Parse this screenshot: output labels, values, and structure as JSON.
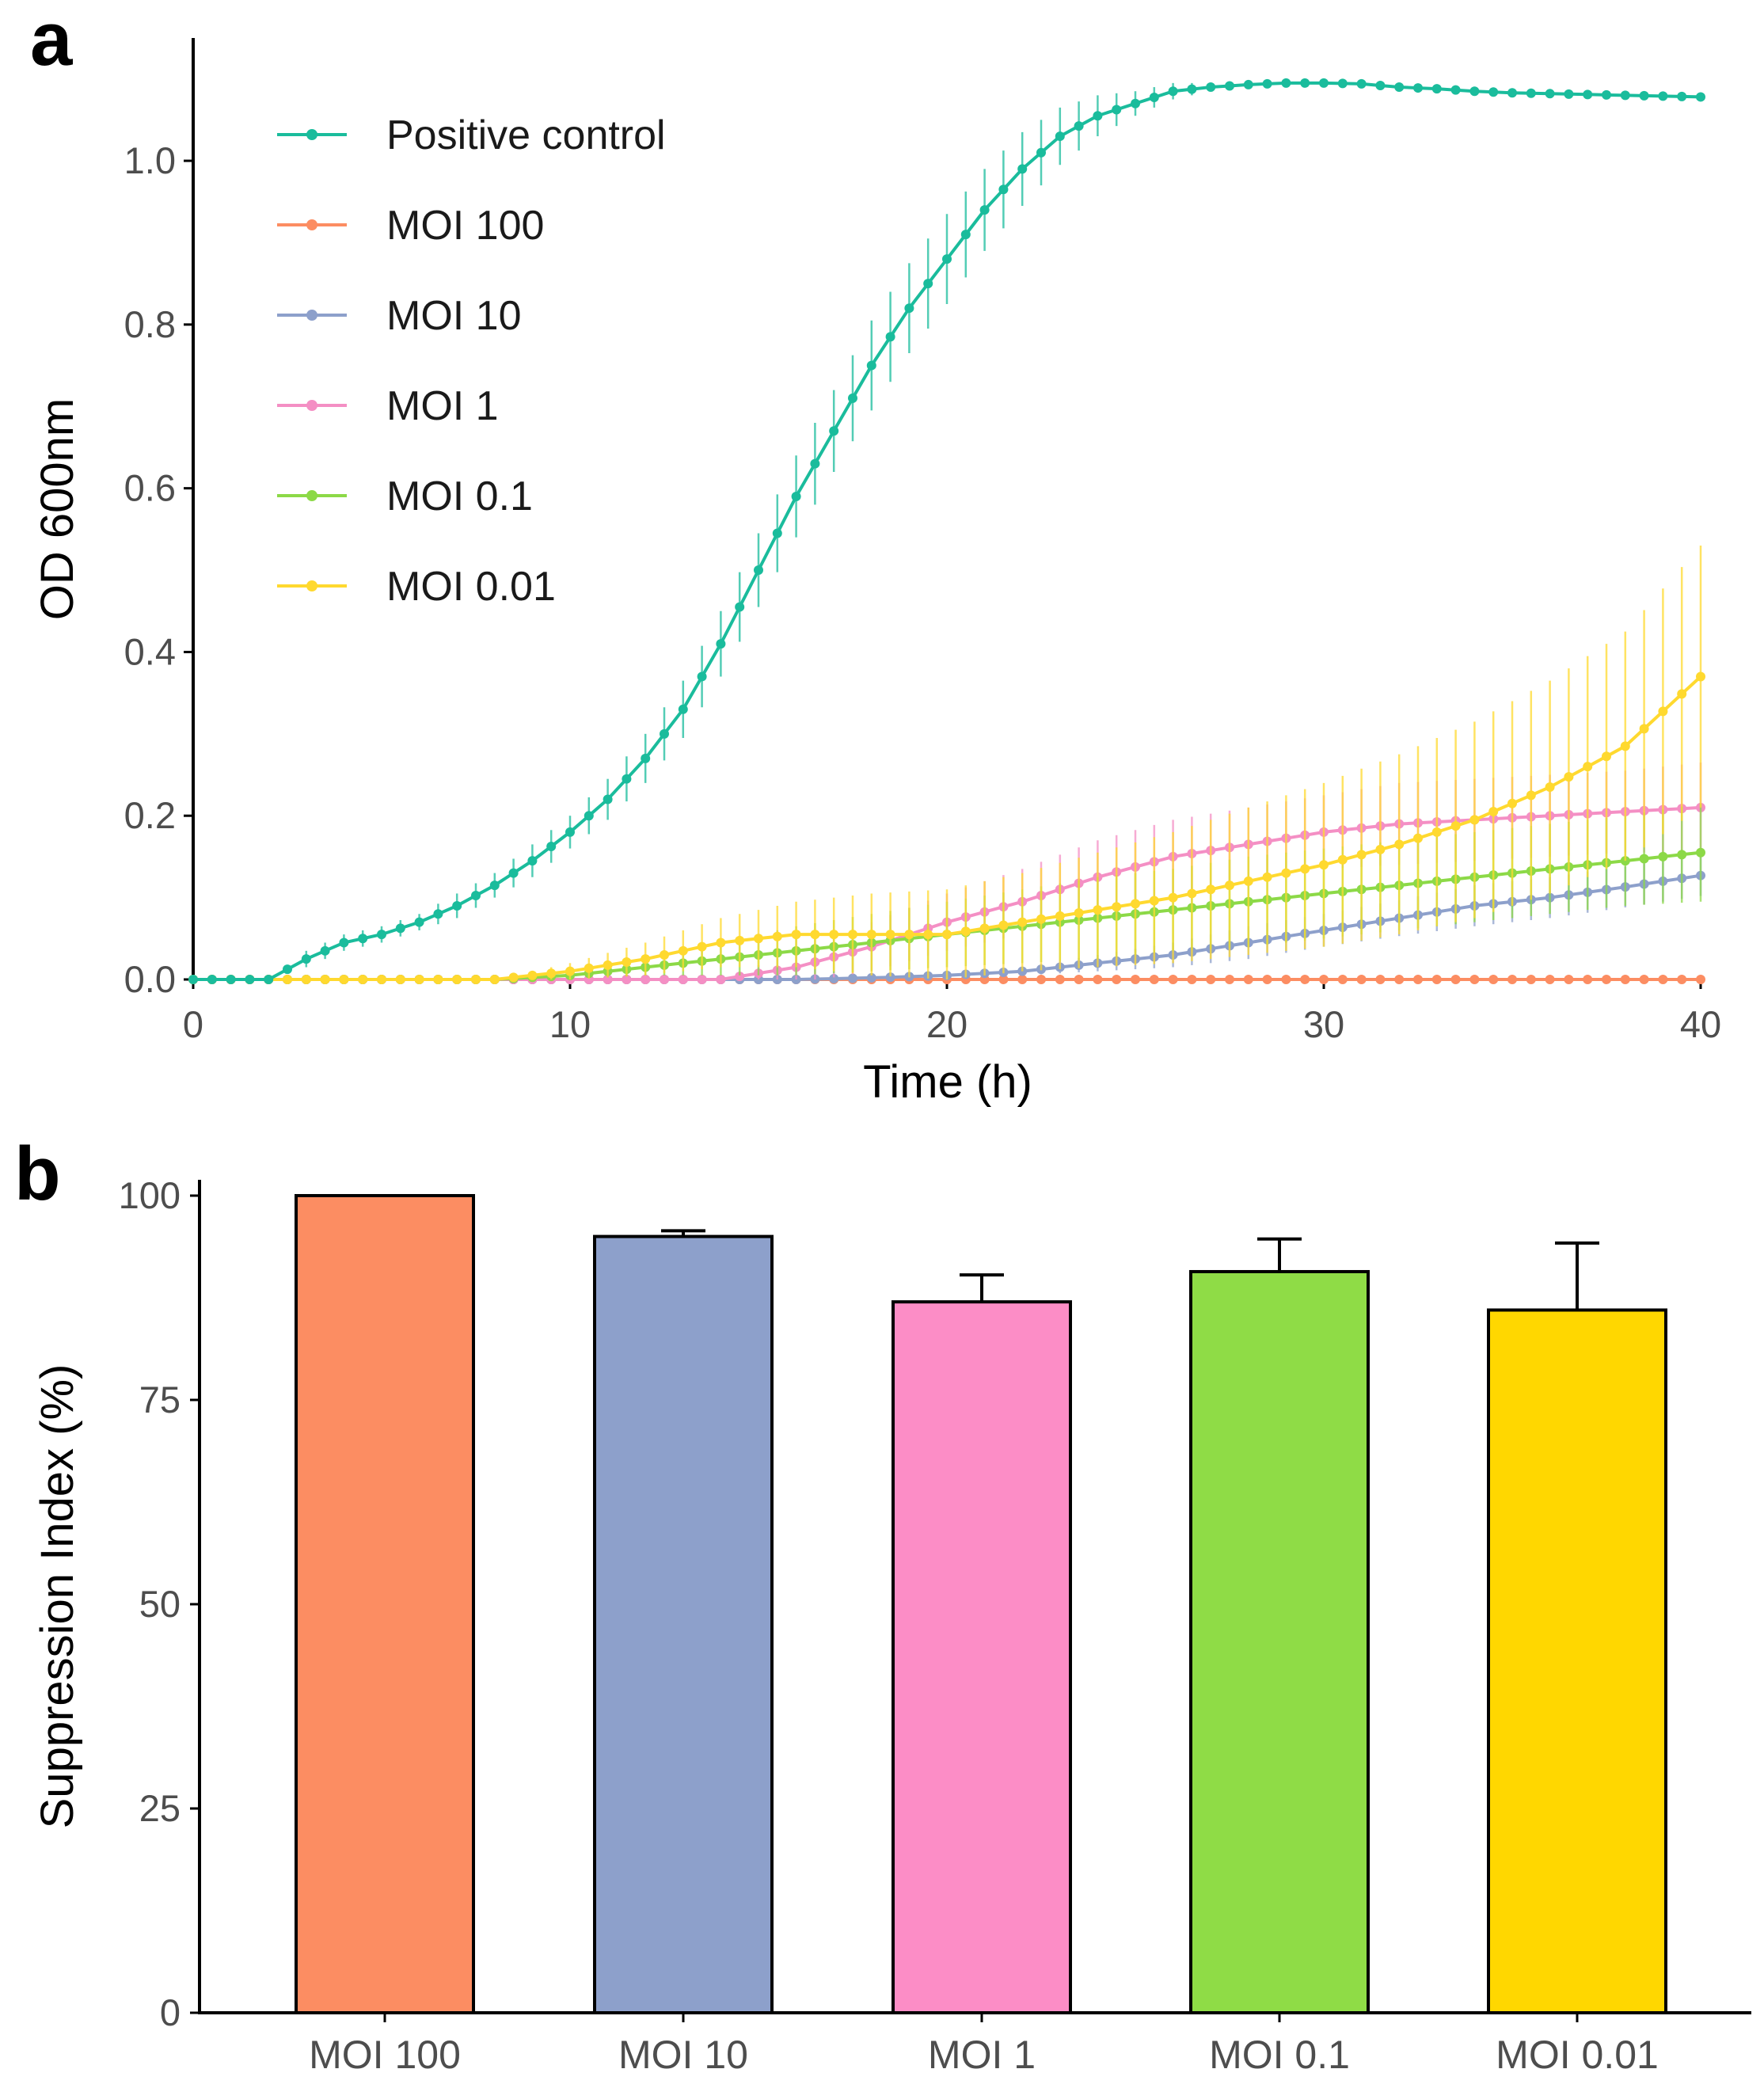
{
  "chart_data": [
    {
      "panel": "a",
      "type": "line",
      "xlabel": "Time (h)",
      "ylabel": "OD 600nm",
      "xlim": [
        0,
        40
      ],
      "ylim": [
        0,
        1.15
      ],
      "xticks": [
        "0",
        "10",
        "20",
        "30",
        "40"
      ],
      "yticks": [
        "0.0",
        "0.2",
        "0.4",
        "0.6",
        "0.8",
        "1.0"
      ],
      "legend_position": "top-left",
      "grid": false,
      "series": [
        {
          "name": "Positive control",
          "color": "#1abc9c",
          "x": [
            0,
            1,
            2,
            3,
            4,
            5,
            6,
            7,
            8,
            9,
            10,
            11,
            12,
            13,
            14,
            15,
            16,
            17,
            18,
            19,
            20,
            21,
            22,
            23,
            24,
            25,
            26,
            27,
            28,
            29,
            30,
            31,
            32,
            33,
            34,
            35,
            36,
            37,
            38,
            39,
            40
          ],
          "y": [
            0.0,
            0.0,
            0.0,
            0.025,
            0.045,
            0.055,
            0.07,
            0.09,
            0.115,
            0.145,
            0.18,
            0.22,
            0.27,
            0.33,
            0.41,
            0.5,
            0.59,
            0.67,
            0.75,
            0.82,
            0.88,
            0.94,
            0.99,
            1.03,
            1.055,
            1.07,
            1.085,
            1.09,
            1.093,
            1.095,
            1.095,
            1.094,
            1.09,
            1.088,
            1.085,
            1.083,
            1.082,
            1.081,
            1.08,
            1.079,
            1.078
          ],
          "err": [
            0,
            0,
            0,
            0.01,
            0.01,
            0.01,
            0.01,
            0.015,
            0.015,
            0.02,
            0.02,
            0.025,
            0.03,
            0.035,
            0.04,
            0.045,
            0.05,
            0.05,
            0.055,
            0.055,
            0.055,
            0.05,
            0.045,
            0.035,
            0.025,
            0.015,
            0.01,
            0.005,
            0.005,
            0.005,
            0.005,
            0.005,
            0.005,
            0.005,
            0.005,
            0.005,
            0.005,
            0.005,
            0.005,
            0.005,
            0.005
          ]
        },
        {
          "name": "MOI 100",
          "color": "#fc8d62",
          "x": [
            0,
            5,
            10,
            15,
            20,
            25,
            30,
            35,
            40
          ],
          "y": [
            0,
            0,
            0,
            0,
            0,
            0,
            0,
            0,
            0
          ],
          "err": [
            0,
            0,
            0,
            0,
            0,
            0,
            0,
            0,
            0
          ]
        },
        {
          "name": "MOI 10",
          "color": "#8da0cb",
          "x": [
            0,
            2,
            4,
            6,
            8,
            10,
            12,
            14,
            16,
            18,
            20,
            22,
            24,
            26,
            28,
            30,
            32,
            34,
            36,
            38,
            40
          ],
          "y": [
            0,
            0,
            0,
            0,
            0,
            0,
            0,
            0,
            0,
            0.002,
            0.005,
            0.01,
            0.02,
            0.03,
            0.045,
            0.06,
            0.075,
            0.09,
            0.1,
            0.113,
            0.127
          ],
          "err": [
            0,
            0,
            0,
            0,
            0,
            0,
            0,
            0,
            0,
            0.002,
            0.003,
            0.005,
            0.01,
            0.015,
            0.02,
            0.02,
            0.022,
            0.025,
            0.025,
            0.025,
            0.025
          ]
        },
        {
          "name": "MOI 1",
          "color": "#f48fc4",
          "x": [
            0,
            2,
            4,
            6,
            8,
            10,
            12,
            14,
            16,
            18,
            20,
            22,
            24,
            26,
            28,
            30,
            32,
            34,
            36,
            38,
            40
          ],
          "y": [
            0,
            0,
            0,
            0,
            0,
            0,
            0,
            0,
            0.015,
            0.04,
            0.07,
            0.095,
            0.125,
            0.15,
            0.165,
            0.18,
            0.19,
            0.195,
            0.2,
            0.205,
            0.21
          ],
          "err": [
            0,
            0,
            0,
            0,
            0,
            0,
            0,
            0,
            0.02,
            0.03,
            0.035,
            0.04,
            0.045,
            0.045,
            0.045,
            0.045,
            0.05,
            0.05,
            0.05,
            0.05,
            0.055
          ]
        },
        {
          "name": "MOI 0.1",
          "color": "#8cd947",
          "x": [
            0,
            2,
            4,
            6,
            8,
            10,
            12,
            14,
            16,
            18,
            20,
            22,
            24,
            26,
            28,
            30,
            32,
            34,
            36,
            38,
            40
          ],
          "y": [
            0,
            0,
            0,
            0,
            0,
            0.005,
            0.015,
            0.025,
            0.035,
            0.045,
            0.055,
            0.065,
            0.075,
            0.085,
            0.095,
            0.105,
            0.115,
            0.125,
            0.135,
            0.145,
            0.155
          ],
          "err": [
            0,
            0,
            0,
            0,
            0,
            0.005,
            0.01,
            0.02,
            0.03,
            0.035,
            0.04,
            0.045,
            0.05,
            0.05,
            0.055,
            0.055,
            0.055,
            0.055,
            0.055,
            0.055,
            0.06
          ]
        },
        {
          "name": "MOI 0.01",
          "color": "#ffd92f",
          "x": [
            0,
            2,
            4,
            6,
            8,
            10,
            12,
            14,
            16,
            18,
            20,
            22,
            24,
            26,
            28,
            30,
            32,
            34,
            36,
            38,
            40
          ],
          "y": [
            0,
            0,
            0,
            0,
            0,
            0.01,
            0.025,
            0.045,
            0.055,
            0.055,
            0.055,
            0.07,
            0.085,
            0.1,
            0.12,
            0.14,
            0.165,
            0.195,
            0.235,
            0.285,
            0.37
          ],
          "err": [
            0,
            0,
            0,
            0,
            0,
            0.01,
            0.02,
            0.03,
            0.04,
            0.05,
            0.055,
            0.06,
            0.07,
            0.08,
            0.09,
            0.1,
            0.11,
            0.12,
            0.13,
            0.14,
            0.16
          ]
        }
      ]
    },
    {
      "panel": "b",
      "type": "bar",
      "ylabel": "Suppression Index (%)",
      "xlabel": "",
      "ylim": [
        0,
        100
      ],
      "yticks": [
        "0",
        "25",
        "50",
        "75",
        "100"
      ],
      "categories": [
        "MOI 100",
        "MOI 10",
        "MOI 1",
        "MOI 0.1",
        "MOI 0.01"
      ],
      "values": [
        100,
        95,
        87,
        90.7,
        86
      ],
      "errors": [
        0,
        0.7,
        3.3,
        4,
        8.2
      ],
      "colors": [
        "#fc8d62",
        "#8da0cb",
        "#fc8dc6",
        "#8fdc46",
        "#ffd700"
      ]
    }
  ],
  "panels": {
    "a_label": "a",
    "b_label": "b"
  }
}
